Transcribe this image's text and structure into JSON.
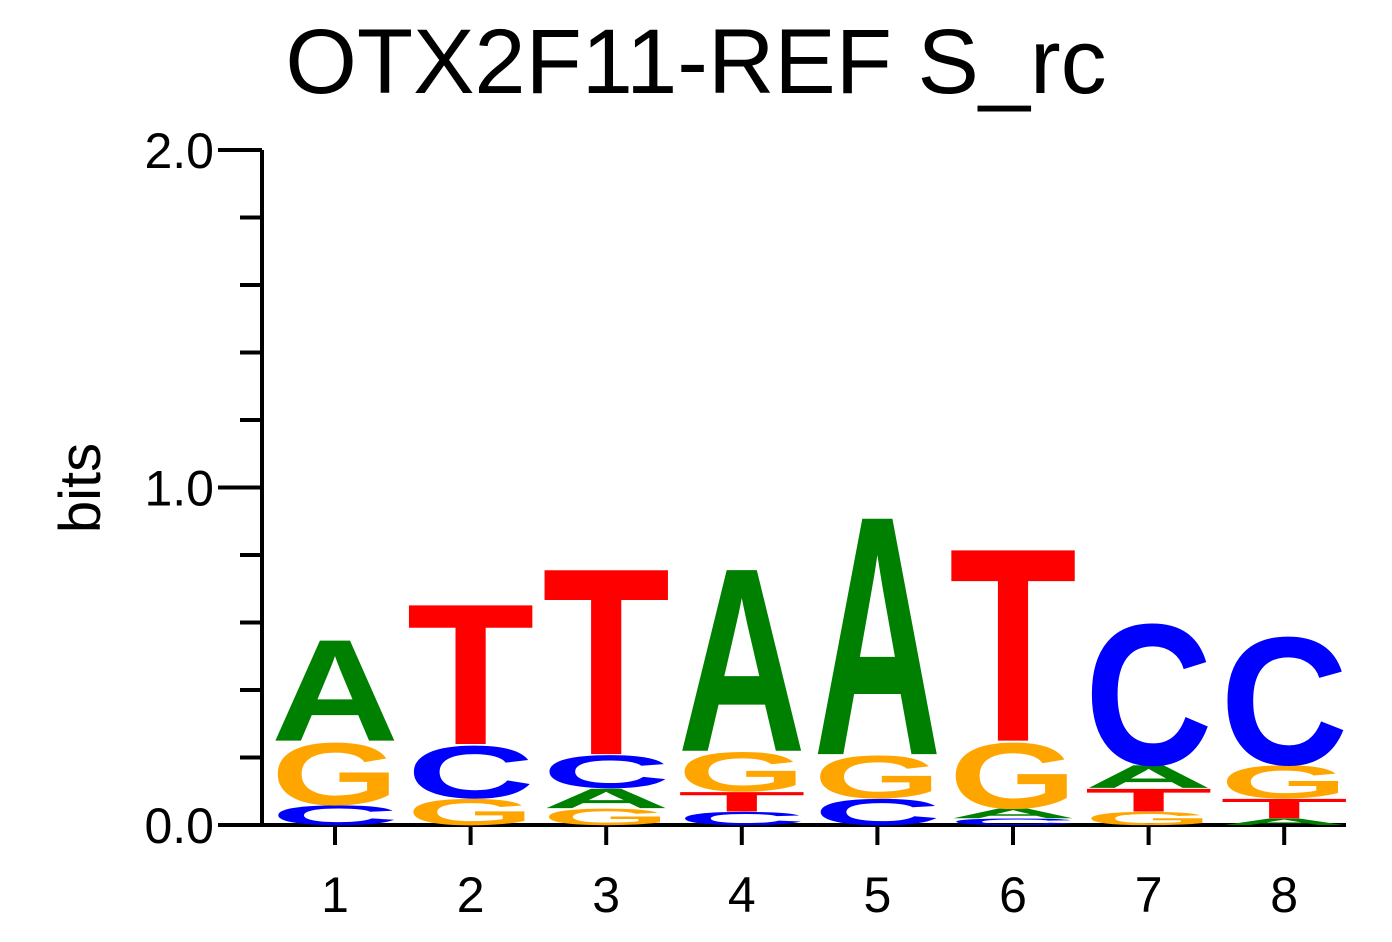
{
  "chart_data": {
    "type": "sequence-logo",
    "title": "OTX2F11-REF S_rc",
    "ylabel": "bits",
    "xlabel": "",
    "ylim": [
      0,
      2
    ],
    "yticks": [
      "0.0",
      "1.0",
      "2.0"
    ],
    "minor_tick_step": 0.2,
    "positions": [
      "1",
      "2",
      "3",
      "4",
      "5",
      "6",
      "7",
      "8"
    ],
    "colors": {
      "A": "#008000",
      "C": "#0000ff",
      "G": "#ffa500",
      "T": "#ff0000"
    },
    "stacks": [
      [
        {
          "letter": "C",
          "bits": 0.06
        },
        {
          "letter": "G",
          "bits": 0.19
        },
        {
          "letter": "A",
          "bits": 0.31
        }
      ],
      [
        {
          "letter": "G",
          "bits": 0.08
        },
        {
          "letter": "C",
          "bits": 0.16
        },
        {
          "letter": "T",
          "bits": 0.43
        }
      ],
      [
        {
          "letter": "G",
          "bits": 0.05
        },
        {
          "letter": "A",
          "bits": 0.06
        },
        {
          "letter": "C",
          "bits": 0.1
        },
        {
          "letter": "T",
          "bits": 0.57
        }
      ],
      [
        {
          "letter": "C",
          "bits": 0.04
        },
        {
          "letter": "T",
          "bits": 0.06
        },
        {
          "letter": "G",
          "bits": 0.12
        },
        {
          "letter": "A",
          "bits": 0.56
        }
      ],
      [
        {
          "letter": "C",
          "bits": 0.08
        },
        {
          "letter": "G",
          "bits": 0.13
        },
        {
          "letter": "A",
          "bits": 0.73
        }
      ],
      [
        {
          "letter": "C",
          "bits": 0.02
        },
        {
          "letter": "A",
          "bits": 0.03
        },
        {
          "letter": "G",
          "bits": 0.2
        },
        {
          "letter": "T",
          "bits": 0.59
        }
      ],
      [
        {
          "letter": "G",
          "bits": 0.04
        },
        {
          "letter": "T",
          "bits": 0.07
        },
        {
          "letter": "A",
          "bits": 0.07
        },
        {
          "letter": "C",
          "bits": 0.43
        }
      ],
      [
        {
          "letter": "A",
          "bits": 0.02
        },
        {
          "letter": "T",
          "bits": 0.06
        },
        {
          "letter": "G",
          "bits": 0.1
        },
        {
          "letter": "C",
          "bits": 0.39
        }
      ]
    ]
  }
}
